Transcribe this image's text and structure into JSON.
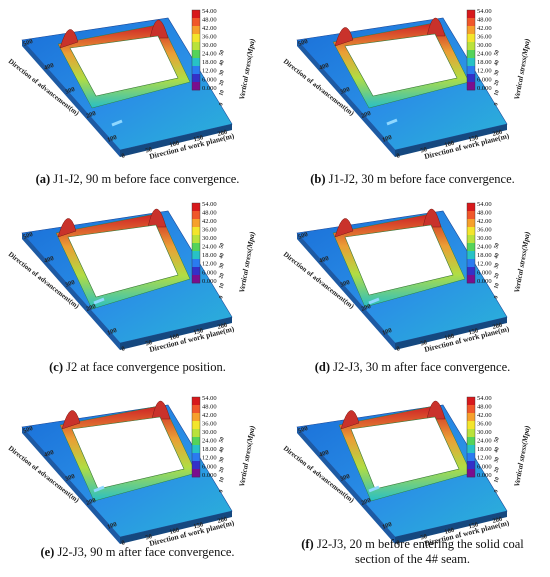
{
  "colorbar": {
    "levels": [
      "54.00",
      "48.00",
      "42.00",
      "36.00",
      "30.00",
      "24.00",
      "18.00",
      "12.00",
      "6.000",
      "0.000"
    ],
    "title": "Vertical stress(Mpa)",
    "colors": [
      "#d7191c",
      "#f0572a",
      "#f6a02c",
      "#f3e52c",
      "#b9e23b",
      "#54d35a",
      "#27c2c6",
      "#2a7bf0",
      "#3330c8",
      "#7a0e8e"
    ]
  },
  "axes": {
    "xlabel": "Direction of work plane(m)",
    "ylabel": "Direction of advancement(m)",
    "x_ticks": [
      "0",
      "50",
      "100",
      "150",
      "200"
    ],
    "y_ticks": [
      "100",
      "200",
      "300",
      "400",
      "500"
    ],
    "z_ticks": [
      "50",
      "40",
      "30",
      "20",
      "10",
      "0"
    ]
  },
  "panels": [
    {
      "letter": "(a)",
      "text": "J1-J2, 90 m before face convergence."
    },
    {
      "letter": "(b)",
      "text": "J1-J2, 30 m before face convergence."
    },
    {
      "letter": "(c)",
      "text": "J2 at face convergence position."
    },
    {
      "letter": "(d)",
      "text": "J2-J3, 30 m after face convergence."
    },
    {
      "letter": "(e)",
      "text": "J2-J3, 90 m after face convergence."
    },
    {
      "letter": "(f)",
      "text": "J2-J3, 20 m before entering the solid coal section of the 4# seam."
    }
  ]
}
